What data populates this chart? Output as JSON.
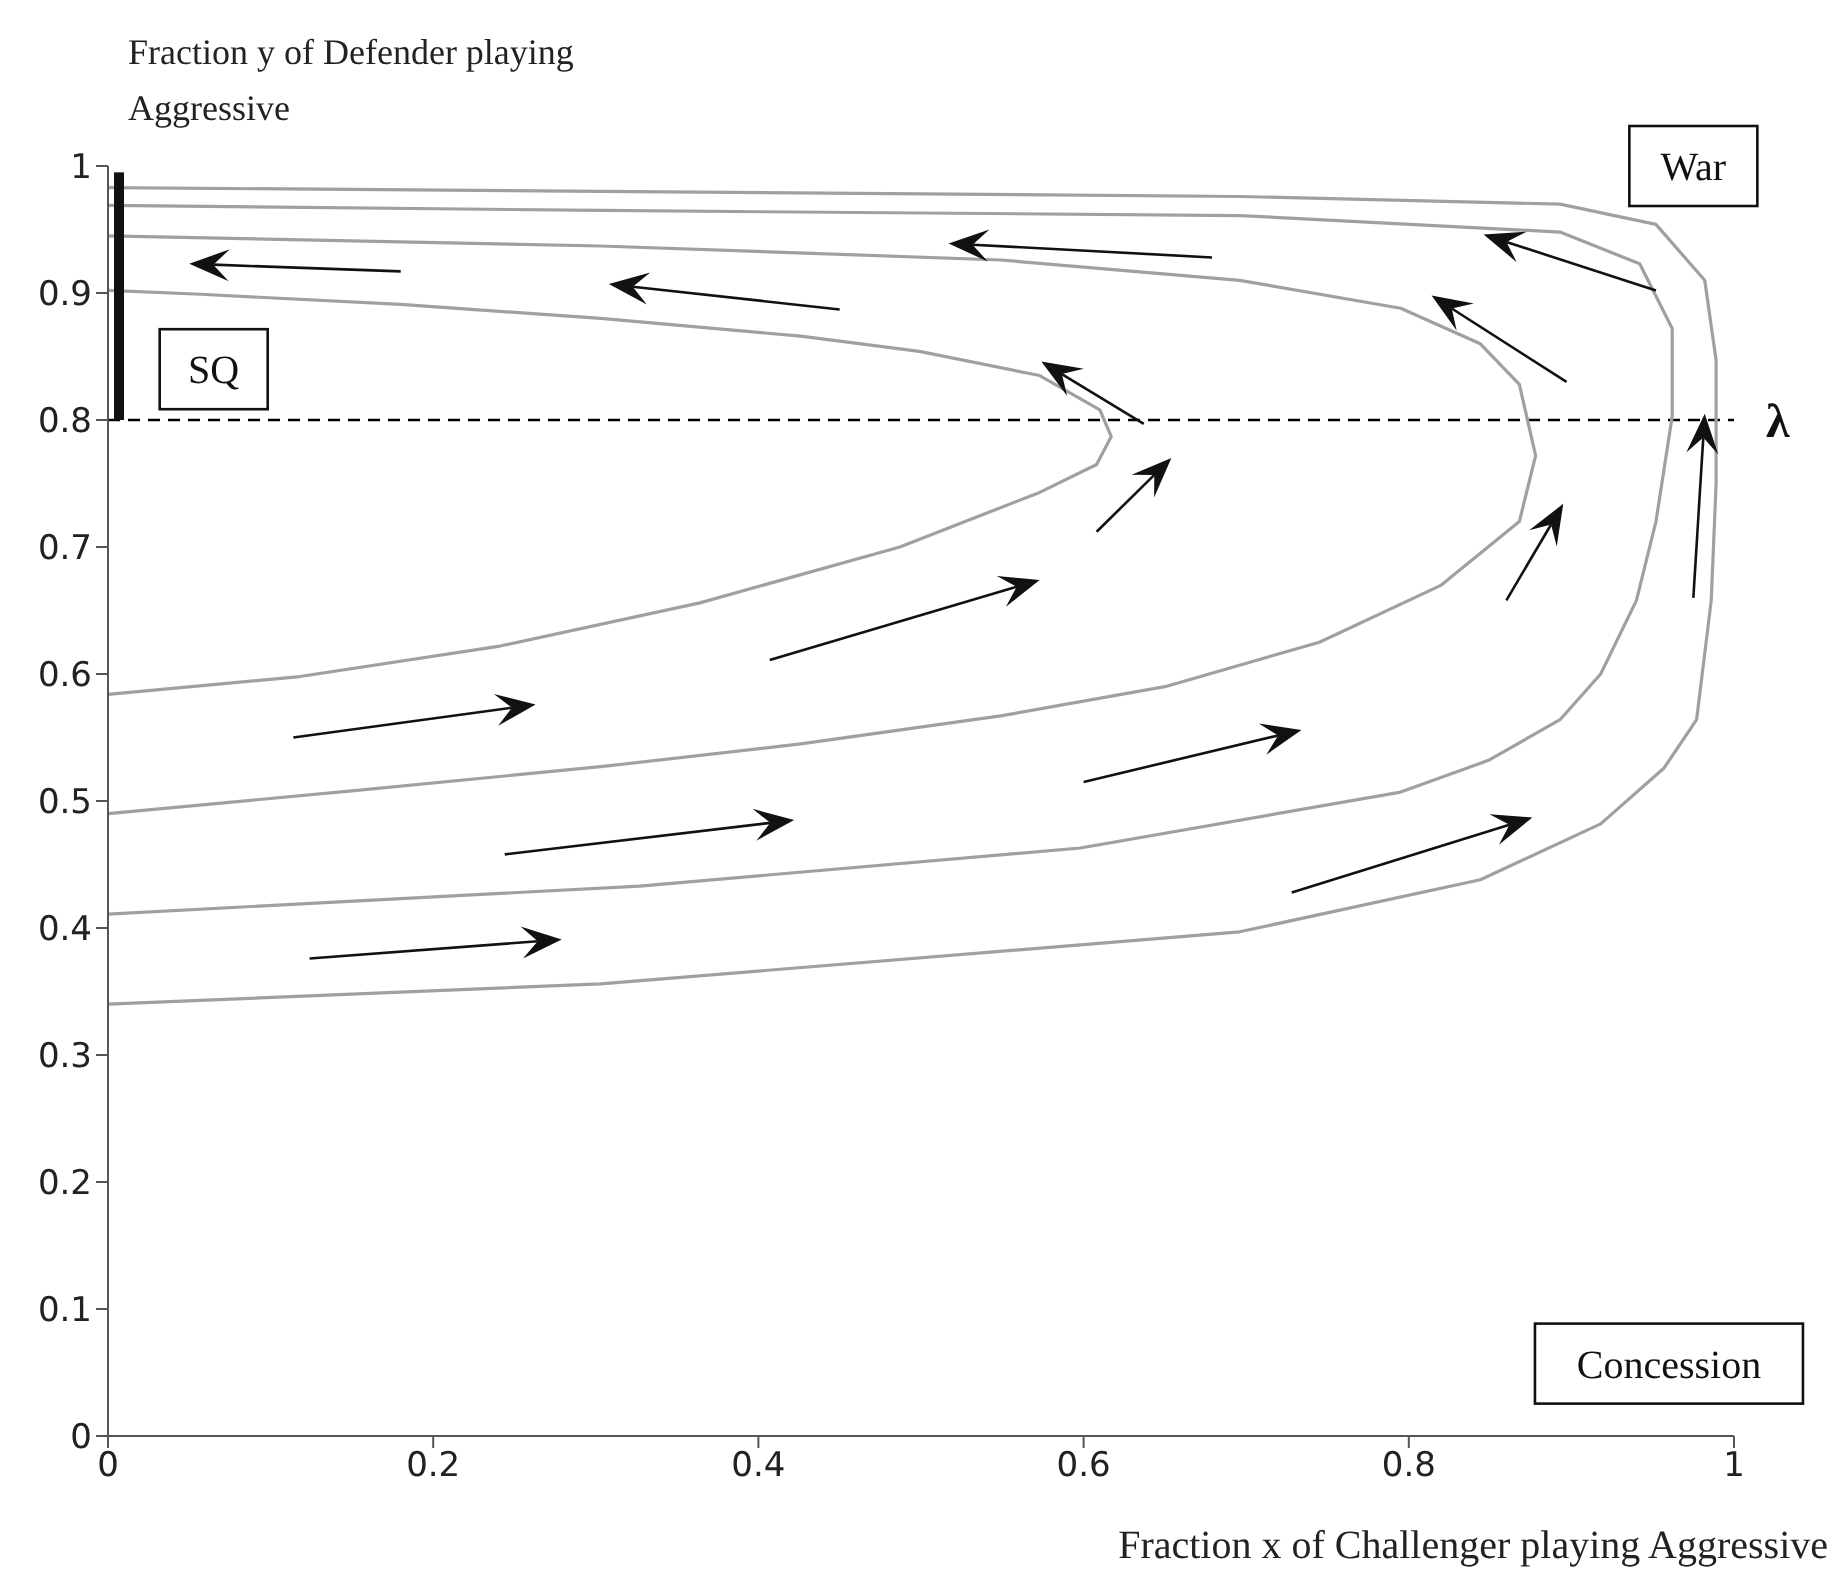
{
  "chart_data": {
    "type": "line",
    "ylabel": "Fraction y of Defender playing Aggressive",
    "xlabel": "Fraction x of Challenger playing Aggressive",
    "xlim": [
      0,
      1
    ],
    "ylim": [
      0,
      1
    ],
    "xticks": [
      0,
      0.2,
      0.4,
      0.6,
      0.8,
      1
    ],
    "yticks": [
      0,
      0.1,
      0.2,
      0.3,
      0.4,
      0.5,
      0.6,
      0.7,
      0.8,
      0.9,
      1
    ],
    "marker": "none",
    "series": [
      {
        "color": "#a0a0a0",
        "x": [
          0,
          0.118,
          0.241,
          0.364,
          0.487,
          0.573,
          0.608,
          0.617,
          0.61,
          0.573,
          0.499,
          0.426,
          0.303,
          0.18,
          0.057,
          0
        ],
        "values": [
          0.584,
          0.598,
          0.622,
          0.656,
          0.7,
          0.743,
          0.765,
          0.787,
          0.808,
          0.835,
          0.854,
          0.866,
          0.88,
          0.891,
          0.899,
          0.902
        ]
      },
      {
        "color": "#a0a0a0",
        "x": [
          0,
          0.15,
          0.303,
          0.426,
          0.549,
          0.65,
          0.745,
          0.82,
          0.868,
          0.878,
          0.868,
          0.844,
          0.795,
          0.696,
          0.549,
          0.303,
          0
        ],
        "values": [
          0.49,
          0.508,
          0.527,
          0.545,
          0.567,
          0.59,
          0.625,
          0.67,
          0.72,
          0.772,
          0.828,
          0.86,
          0.888,
          0.91,
          0.926,
          0.937,
          0.945
        ]
      },
      {
        "color": "#a0a0a0",
        "x": [
          0,
          0.327,
          0.598,
          0.795,
          0.849,
          0.893,
          0.918,
          0.94,
          0.952,
          0.962,
          0.962,
          0.942,
          0.893,
          0.696,
          0.303,
          0
        ],
        "values": [
          0.411,
          0.433,
          0.463,
          0.507,
          0.532,
          0.564,
          0.6,
          0.658,
          0.72,
          0.803,
          0.872,
          0.923,
          0.948,
          0.961,
          0.965,
          0.969
        ]
      },
      {
        "color": "#a0a0a0",
        "x": [
          0,
          0.303,
          0.696,
          0.844,
          0.918,
          0.957,
          0.977,
          0.986,
          0.989,
          0.989,
          0.982,
          0.952,
          0.893,
          0.696,
          0.303,
          0
        ],
        "values": [
          0.34,
          0.356,
          0.397,
          0.438,
          0.482,
          0.526,
          0.564,
          0.658,
          0.75,
          0.847,
          0.91,
          0.954,
          0.97,
          0.976,
          0.98,
          0.983
        ]
      }
    ],
    "ref_lines": [
      {
        "axis": "y",
        "value": 0.8,
        "label": "λ",
        "color": "#000000",
        "line_style": "dashed"
      }
    ],
    "annotations": [
      "SQ",
      "War",
      "Concession"
    ]
  }
}
